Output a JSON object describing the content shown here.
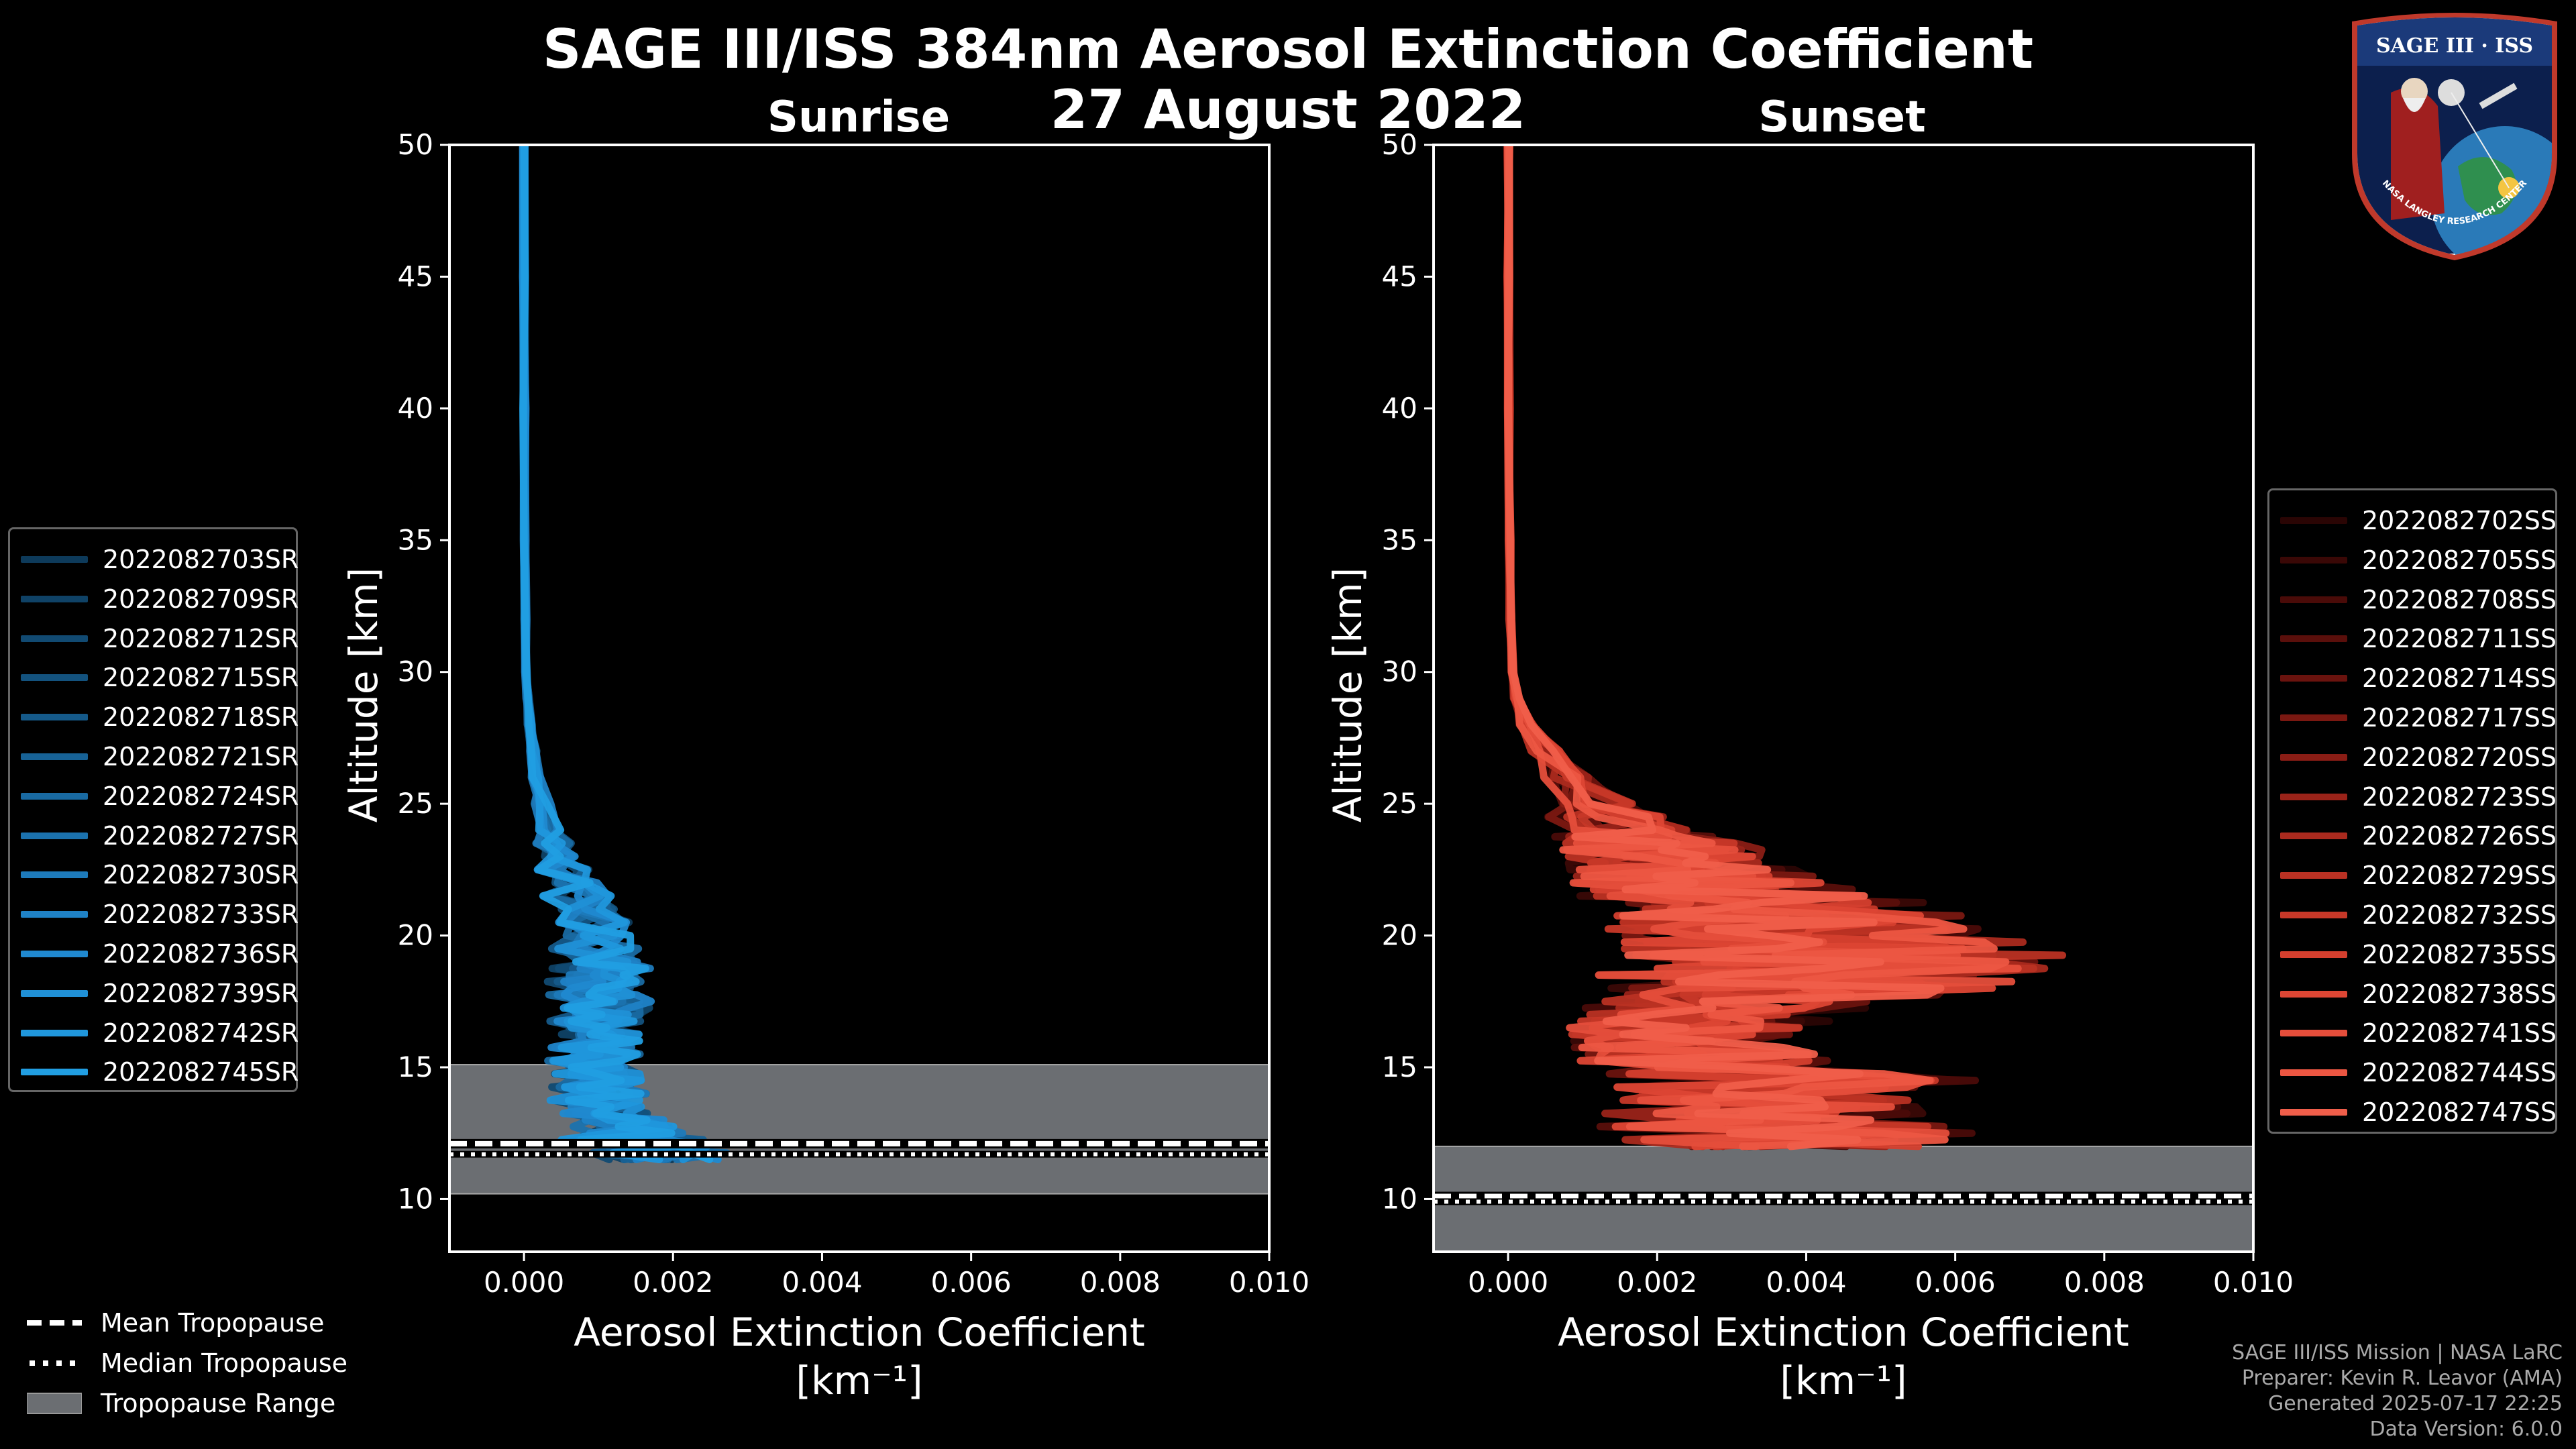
{
  "title_line1": "SAGE III/ISS 384nm Aerosol Extinction Coefficient",
  "title_line2": "27 August 2022",
  "colors": {
    "background": "#000000",
    "sunrise": "#1f9ee0",
    "sunset": "#f0594a",
    "tropopause_fill": "#6b6e72"
  },
  "chart_data": [
    {
      "type": "line",
      "panel": "Sunrise",
      "title": "Sunrise",
      "xlabel_line1": "Aerosol Extinction Coefficient",
      "xlabel_line2": "[km⁻¹]",
      "ylabel": "Altitude [km]",
      "xlim": [
        -0.001,
        0.01
      ],
      "ylim": [
        8,
        50
      ],
      "xticks": [
        "0.000",
        "0.002",
        "0.004",
        "0.006",
        "0.008",
        "0.010"
      ],
      "xtick_values": [
        0,
        0.002,
        0.004,
        0.006,
        0.008,
        0.01
      ],
      "yticks": [
        "10",
        "15",
        "20",
        "25",
        "30",
        "35",
        "40",
        "45",
        "50"
      ],
      "ytick_values": [
        10,
        15,
        20,
        25,
        30,
        35,
        40,
        45,
        50
      ],
      "tropopause": {
        "mean": 12.1,
        "median": 11.7,
        "range": [
          10.2,
          15.1
        ]
      },
      "series_names": [
        "2022082703SR",
        "2022082709SR",
        "2022082712SR",
        "2022082715SR",
        "2022082718SR",
        "2022082721SR",
        "2022082724SR",
        "2022082727SR",
        "2022082730SR",
        "2022082733SR",
        "2022082736SR",
        "2022082739SR",
        "2022082742SR",
        "2022082745SR"
      ],
      "legend_colors": [
        "#0d3a5a",
        "#0f4266",
        "#114a72",
        "#13527e",
        "#155a8a",
        "#176296",
        "#196aa2",
        "#1b72ae",
        "#1d7aba",
        "#1f82c6",
        "#2089d0",
        "#2090d6",
        "#2097dc",
        "#219ee2"
      ],
      "profile": {
        "altitude": [
          11.5,
          12,
          12.5,
          13,
          13.5,
          14,
          14.5,
          15,
          15.5,
          16,
          16.5,
          17,
          17.5,
          18,
          18.5,
          19,
          20,
          21,
          22,
          23,
          24,
          25,
          26,
          27,
          28,
          29,
          30,
          32,
          35,
          40,
          45,
          50
        ],
        "extinction": [
          0.002,
          0.0018,
          0.0015,
          0.0013,
          0.0011,
          0.0012,
          0.0011,
          0.001,
          0.0011,
          0.0012,
          0.001,
          0.0011,
          0.0012,
          0.001,
          0.0011,
          0.0012,
          0.001,
          0.0009,
          0.0007,
          0.0005,
          0.00035,
          0.00025,
          0.00018,
          0.00012,
          8e-05,
          5e-05,
          3e-05,
          2e-05,
          1e-05,
          5e-06,
          3e-06,
          2e-06
        ]
      }
    },
    {
      "type": "line",
      "panel": "Sunset",
      "title": "Sunset",
      "xlabel_line1": "Aerosol Extinction Coefficient",
      "xlabel_line2": "[km⁻¹]",
      "ylabel": "Altitude [km]",
      "xlim": [
        -0.001,
        0.01
      ],
      "ylim": [
        8,
        50
      ],
      "xticks": [
        "0.000",
        "0.002",
        "0.004",
        "0.006",
        "0.008",
        "0.010"
      ],
      "xtick_values": [
        0,
        0.002,
        0.004,
        0.006,
        0.008,
        0.01
      ],
      "yticks": [
        "10",
        "15",
        "20",
        "25",
        "30",
        "35",
        "40",
        "45",
        "50"
      ],
      "ytick_values": [
        10,
        15,
        20,
        25,
        30,
        35,
        40,
        45,
        50
      ],
      "tropopause": {
        "mean": 10.1,
        "median": 9.9,
        "range": [
          8.0,
          12.0
        ]
      },
      "series_names": [
        "2022082702SS",
        "2022082705SS",
        "2022082708SS",
        "2022082711SS",
        "2022082714SS",
        "2022082717SS",
        "2022082720SS",
        "2022082723SS",
        "2022082726SS",
        "2022082729SS",
        "2022082732SS",
        "2022082735SS",
        "2022082738SS",
        "2022082741SS",
        "2022082744SS",
        "2022082747SS"
      ],
      "legend_colors": [
        "#2a0504",
        "#3a0806",
        "#4a0b08",
        "#5a0f0b",
        "#6a130e",
        "#7a1811",
        "#8a1d15",
        "#9a2319",
        "#aa2a1e",
        "#ba3123",
        "#c73828",
        "#d43f2e",
        "#dd4634",
        "#e54e3b",
        "#ec5642",
        "#f05e4a"
      ],
      "profile": {
        "altitude": [
          12,
          12.5,
          13,
          13.5,
          14,
          14.5,
          15,
          15.5,
          16,
          16.5,
          17,
          17.5,
          18,
          18.5,
          19,
          19.5,
          20,
          20.5,
          21,
          21.5,
          22,
          22.5,
          23,
          23.5,
          24,
          24.5,
          25,
          26,
          27,
          28,
          29,
          30,
          32,
          35,
          40,
          45,
          50
        ],
        "extinction": [
          0.004,
          0.0045,
          0.0035,
          0.0042,
          0.003,
          0.0045,
          0.0028,
          0.003,
          0.0025,
          0.0028,
          0.003,
          0.0035,
          0.005,
          0.0045,
          0.0052,
          0.0048,
          0.0045,
          0.0042,
          0.004,
          0.0035,
          0.003,
          0.0028,
          0.0025,
          0.0022,
          0.0018,
          0.0015,
          0.0012,
          0.0008,
          0.0005,
          0.00025,
          0.00012,
          6e-05,
          3e-05,
          2e-05,
          1e-05,
          5e-06,
          3e-06
        ]
      }
    }
  ],
  "bottom_legend": {
    "mean": "Mean Tropopause",
    "median": "Median Tropopause",
    "range": "Tropopause Range"
  },
  "footer": {
    "line1": "SAGE III/ISS Mission | NASA LaRC",
    "line2": "Preparer: Kevin R. Leavor (AMA)",
    "line3": "Generated 2025-07-17 22:25",
    "line4": "Data Version: 6.0.0"
  },
  "badge": {
    "top": "SAGE III · ISS",
    "ring": "NASA LANGLEY RESEARCH CENTER"
  }
}
